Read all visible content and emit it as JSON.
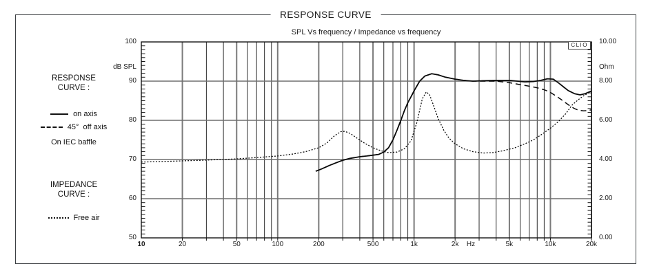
{
  "frame": {
    "title": "RESPONSE CURVE"
  },
  "chart": {
    "title": "SPL Vs frequency / Impedance vs frequency",
    "watermark": "CLIO",
    "left_axis_unit": "dB SPL",
    "right_axis_unit": "Ohm",
    "x_unit": "Hz",
    "left_ticks": [
      {
        "label": "100",
        "v": 100
      },
      {
        "label": "90",
        "v": 90
      },
      {
        "label": "80",
        "v": 80
      },
      {
        "label": "70",
        "v": 70
      },
      {
        "label": "60",
        "v": 60
      },
      {
        "label": "50",
        "v": 50
      }
    ],
    "right_ticks": [
      {
        "label": "10.00",
        "v": 10
      },
      {
        "label": "8.00",
        "v": 8
      },
      {
        "label": "6.00",
        "v": 6
      },
      {
        "label": "4.00",
        "v": 4
      },
      {
        "label": "2.00",
        "v": 2
      },
      {
        "label": "0.00",
        "v": 0
      }
    ],
    "x_ticks": [
      {
        "label": "10",
        "f": 10,
        "bold": true
      },
      {
        "label": "20",
        "f": 20
      },
      {
        "label": "50",
        "f": 50
      },
      {
        "label": "100",
        "f": 100
      },
      {
        "label": "200",
        "f": 200
      },
      {
        "label": "500",
        "f": 500
      },
      {
        "label": "1k",
        "f": 1000
      },
      {
        "label": "2k",
        "f": 2000
      },
      {
        "label": "Hz",
        "px": 478
      },
      {
        "label": "5k",
        "f": 5000
      },
      {
        "label": "10k",
        "f": 10000
      },
      {
        "label": "20k",
        "f": 20000
      }
    ]
  },
  "legend": {
    "response_title": "RESPONSE\nCURVE :",
    "on_axis": "on axis",
    "off_axis": "45°  off axis",
    "baffle_note": "On IEC baffle",
    "impedance_title": "IMPEDANCE\nCURVE :",
    "free_air": "Free air"
  },
  "colors": {
    "ink": "#0a0a0a",
    "grid_major": "#7a7a7a",
    "grid_minor": "#2b2b2b",
    "grid_h": "#6e6e6e",
    "border": "#141414",
    "background": "#ffffff"
  },
  "chart_data": {
    "type": "line",
    "title": "SPL Vs frequency / Impedance vs frequency",
    "xlabel": "Hz",
    "x_scale": "log",
    "xlim": [
      10,
      20000
    ],
    "grid": true,
    "y_left": {
      "label": "dB SPL",
      "lim": [
        50,
        100
      ]
    },
    "y_right": {
      "label": "Ohm",
      "lim": [
        0,
        10
      ]
    },
    "major_gridlines_hz": [
      20,
      50,
      100,
      200,
      500,
      1000,
      2000,
      5000,
      10000,
      20000
    ],
    "series": [
      {
        "name": "on axis",
        "axis": "left",
        "style": "solid",
        "unit": "dB SPL",
        "points": [
          [
            190,
            67.0
          ],
          [
            210,
            67.6
          ],
          [
            240,
            68.5
          ],
          [
            270,
            69.2
          ],
          [
            300,
            69.8
          ],
          [
            340,
            70.3
          ],
          [
            400,
            70.7
          ],
          [
            450,
            70.9
          ],
          [
            500,
            71.1
          ],
          [
            550,
            71.3
          ],
          [
            600,
            71.9
          ],
          [
            650,
            73.0
          ],
          [
            700,
            75.0
          ],
          [
            750,
            77.5
          ],
          [
            800,
            80.0
          ],
          [
            850,
            82.5
          ],
          [
            900,
            84.5
          ],
          [
            950,
            86.0
          ],
          [
            1000,
            87.5
          ],
          [
            1100,
            90.0
          ],
          [
            1200,
            91.3
          ],
          [
            1350,
            91.9
          ],
          [
            1500,
            91.6
          ],
          [
            1700,
            91.0
          ],
          [
            2000,
            90.5
          ],
          [
            2300,
            90.2
          ],
          [
            2700,
            90.0
          ],
          [
            3200,
            90.1
          ],
          [
            4000,
            90.2
          ],
          [
            5000,
            90.2
          ],
          [
            5700,
            90.0
          ],
          [
            6500,
            89.8
          ],
          [
            7500,
            89.9
          ],
          [
            8500,
            90.2
          ],
          [
            9500,
            90.6
          ],
          [
            10500,
            90.5
          ],
          [
            11500,
            89.5
          ],
          [
            12500,
            88.5
          ],
          [
            13500,
            87.6
          ],
          [
            15000,
            86.8
          ],
          [
            16500,
            86.5
          ],
          [
            18000,
            86.8
          ],
          [
            20000,
            87.5
          ]
        ]
      },
      {
        "name": "45° off axis",
        "axis": "left",
        "style": "dashed",
        "unit": "dB SPL",
        "points": [
          [
            190,
            67.0
          ],
          [
            210,
            67.6
          ],
          [
            240,
            68.5
          ],
          [
            270,
            69.2
          ],
          [
            300,
            69.8
          ],
          [
            340,
            70.3
          ],
          [
            400,
            70.7
          ],
          [
            450,
            70.9
          ],
          [
            500,
            71.1
          ],
          [
            550,
            71.3
          ],
          [
            600,
            71.9
          ],
          [
            650,
            73.0
          ],
          [
            700,
            75.0
          ],
          [
            750,
            77.5
          ],
          [
            800,
            80.0
          ],
          [
            850,
            82.5
          ],
          [
            900,
            84.5
          ],
          [
            950,
            86.0
          ],
          [
            1000,
            87.5
          ],
          [
            1100,
            90.0
          ],
          [
            1200,
            91.3
          ],
          [
            1350,
            91.9
          ],
          [
            1500,
            91.6
          ],
          [
            1700,
            91.0
          ],
          [
            2000,
            90.5
          ],
          [
            2300,
            90.2
          ],
          [
            2700,
            90.0
          ],
          [
            3200,
            90.0
          ],
          [
            4000,
            90.0
          ],
          [
            5000,
            89.6
          ],
          [
            6000,
            89.1
          ],
          [
            7000,
            88.7
          ],
          [
            8000,
            88.3
          ],
          [
            9000,
            87.8
          ],
          [
            10000,
            87.1
          ],
          [
            11000,
            86.2
          ],
          [
            12000,
            85.3
          ],
          [
            13000,
            84.4
          ],
          [
            14000,
            83.6
          ],
          [
            15000,
            83.0
          ],
          [
            16000,
            82.6
          ],
          [
            17500,
            82.4
          ],
          [
            19000,
            82.5
          ],
          [
            20000,
            82.7
          ]
        ]
      },
      {
        "name": "Free air impedance",
        "axis": "right",
        "style": "dotted",
        "unit": "Ohm",
        "points": [
          [
            10,
            3.87
          ],
          [
            15,
            3.9
          ],
          [
            20,
            3.93
          ],
          [
            30,
            3.97
          ],
          [
            50,
            4.03
          ],
          [
            70,
            4.1
          ],
          [
            100,
            4.18
          ],
          [
            130,
            4.28
          ],
          [
            160,
            4.4
          ],
          [
            200,
            4.6
          ],
          [
            230,
            4.85
          ],
          [
            260,
            5.2
          ],
          [
            290,
            5.42
          ],
          [
            310,
            5.44
          ],
          [
            340,
            5.33
          ],
          [
            380,
            5.1
          ],
          [
            430,
            4.85
          ],
          [
            500,
            4.6
          ],
          [
            570,
            4.45
          ],
          [
            650,
            4.35
          ],
          [
            750,
            4.38
          ],
          [
            850,
            4.55
          ],
          [
            950,
            4.95
          ],
          [
            1050,
            5.9
          ],
          [
            1150,
            7.1
          ],
          [
            1230,
            7.45
          ],
          [
            1300,
            7.3
          ],
          [
            1400,
            6.7
          ],
          [
            1500,
            6.1
          ],
          [
            1650,
            5.5
          ],
          [
            1800,
            5.1
          ],
          [
            2000,
            4.8
          ],
          [
            2300,
            4.55
          ],
          [
            2700,
            4.4
          ],
          [
            3200,
            4.33
          ],
          [
            3800,
            4.35
          ],
          [
            4500,
            4.45
          ],
          [
            5500,
            4.6
          ],
          [
            6500,
            4.8
          ],
          [
            7500,
            5.0
          ],
          [
            8500,
            5.25
          ],
          [
            10000,
            5.6
          ],
          [
            11500,
            5.95
          ],
          [
            13000,
            6.35
          ],
          [
            14500,
            6.8
          ],
          [
            16000,
            7.05
          ],
          [
            17500,
            7.25
          ],
          [
            19000,
            7.4
          ],
          [
            20000,
            7.5
          ]
        ]
      }
    ]
  }
}
